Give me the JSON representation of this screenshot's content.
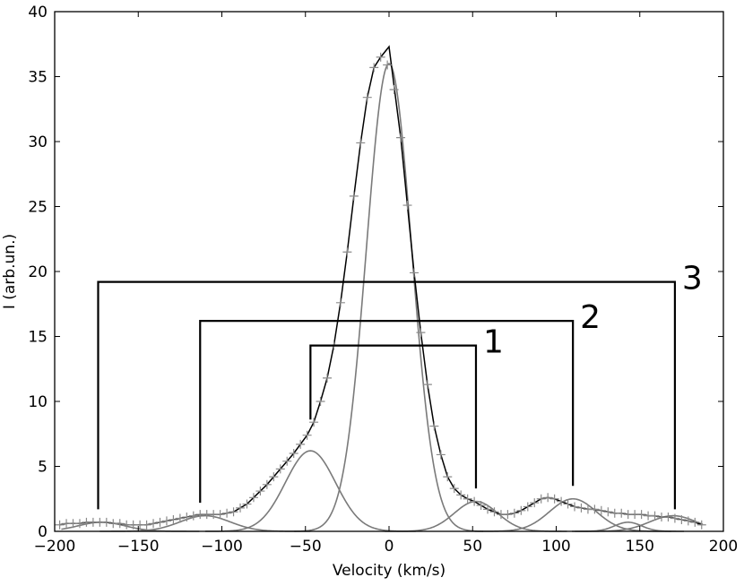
{
  "chart_data": {
    "type": "line",
    "title": "",
    "xlabel": "Velocity (km/s)",
    "ylabel": "I (arb.un.)",
    "xlim": [
      -200,
      200
    ],
    "ylim": [
      0,
      40
    ],
    "xticks": [
      -200,
      -150,
      -100,
      -50,
      0,
      50,
      100,
      150,
      200
    ],
    "yticks": [
      0,
      5,
      10,
      15,
      20,
      25,
      30,
      35,
      40
    ],
    "xtick_labels": [
      "−200",
      "−150",
      "−100",
      "−50",
      "0",
      "50",
      "100",
      "150",
      "200"
    ],
    "ytick_labels": [
      "0",
      "5",
      "10",
      "15",
      "20",
      "25",
      "30",
      "35",
      "40"
    ],
    "grid": false,
    "legend": "none",
    "colors": {
      "fit": "#000000",
      "components": "#7a7a7a",
      "observed": "#8a8a8a",
      "brackets": "#000000"
    },
    "components": [
      {
        "center": 0,
        "amplitude": 36.0,
        "sigma": 13.5
      },
      {
        "center": -47,
        "amplitude": 6.2,
        "sigma": 15
      },
      {
        "center": 52,
        "amplitude": 2.3,
        "sigma": 13
      },
      {
        "center": -110,
        "amplitude": 1.2,
        "sigma": 15
      },
      {
        "center": 110,
        "amplitude": 2.5,
        "sigma": 14
      },
      {
        "center": -172,
        "amplitude": 0.7,
        "sigma": 14
      },
      {
        "center": 170,
        "amplitude": 1.2,
        "sigma": 14
      },
      {
        "center": 143,
        "amplitude": 0.7,
        "sigma": 8
      }
    ],
    "total_fit_peak": {
      "x": 0,
      "y": 37.3
    },
    "observed": {
      "x": [
        -197,
        -193,
        -189,
        -185,
        -181,
        -177,
        -173,
        -169,
        -165,
        -161,
        -157,
        -153,
        -149,
        -145,
        -141,
        -137,
        -133,
        -129,
        -125,
        -121,
        -117,
        -113,
        -109,
        -105,
        -101,
        -97,
        -93,
        -89,
        -85,
        -81,
        -77,
        -73,
        -69,
        -65,
        -61,
        -57,
        -53,
        -49,
        -45,
        -41,
        -37,
        -33,
        -29,
        -25,
        -21,
        -17,
        -13,
        -9,
        -5,
        -1,
        3,
        7,
        11,
        15,
        19,
        23,
        27,
        31,
        35,
        39,
        43,
        47,
        51,
        55,
        59,
        63,
        67,
        71,
        75,
        79,
        83,
        87,
        91,
        95,
        99,
        103,
        107,
        111,
        115,
        119,
        123,
        127,
        131,
        135,
        139,
        143,
        147,
        151,
        155,
        159,
        163,
        167,
        171,
        175,
        179,
        183,
        187
      ],
      "y": [
        0.5,
        0.6,
        0.6,
        0.6,
        0.7,
        0.7,
        0.7,
        0.7,
        0.6,
        0.6,
        0.5,
        0.5,
        0.5,
        0.5,
        0.6,
        0.7,
        0.8,
        0.9,
        1.0,
        1.1,
        1.2,
        1.3,
        1.3,
        1.3,
        1.3,
        1.4,
        1.5,
        1.8,
        2.1,
        2.6,
        3.1,
        3.6,
        4.2,
        4.8,
        5.4,
        6.0,
        6.7,
        7.4,
        8.4,
        10.0,
        11.8,
        14.3,
        17.6,
        21.5,
        25.8,
        29.9,
        33.4,
        35.7,
        36.5,
        35.9,
        34.0,
        30.3,
        25.1,
        19.9,
        15.3,
        11.3,
        8.1,
        5.9,
        4.2,
        3.3,
        2.8,
        2.5,
        2.3,
        2.0,
        1.7,
        1.5,
        1.3,
        1.3,
        1.4,
        1.6,
        1.9,
        2.2,
        2.5,
        2.6,
        2.5,
        2.3,
        2.1,
        1.9,
        1.8,
        1.7,
        1.7,
        1.6,
        1.5,
        1.4,
        1.4,
        1.3,
        1.3,
        1.3,
        1.2,
        1.2,
        1.1,
        1.1,
        1.0,
        0.9,
        0.8,
        0.7,
        0.5
      ]
    },
    "brackets": [
      {
        "label": "1",
        "x_left": -47,
        "x_right": 52,
        "y_top": 14.3,
        "y_left_end": 8.6,
        "y_right_end": 3.3
      },
      {
        "label": "2",
        "x_left": -113,
        "x_right": 110,
        "y_top": 16.2,
        "y_left_end": 2.2,
        "y_right_end": 3.5
      },
      {
        "label": "3",
        "x_left": -174,
        "x_right": 171,
        "y_top": 19.2,
        "y_left_end": 1.7,
        "y_right_end": 1.7
      }
    ]
  }
}
